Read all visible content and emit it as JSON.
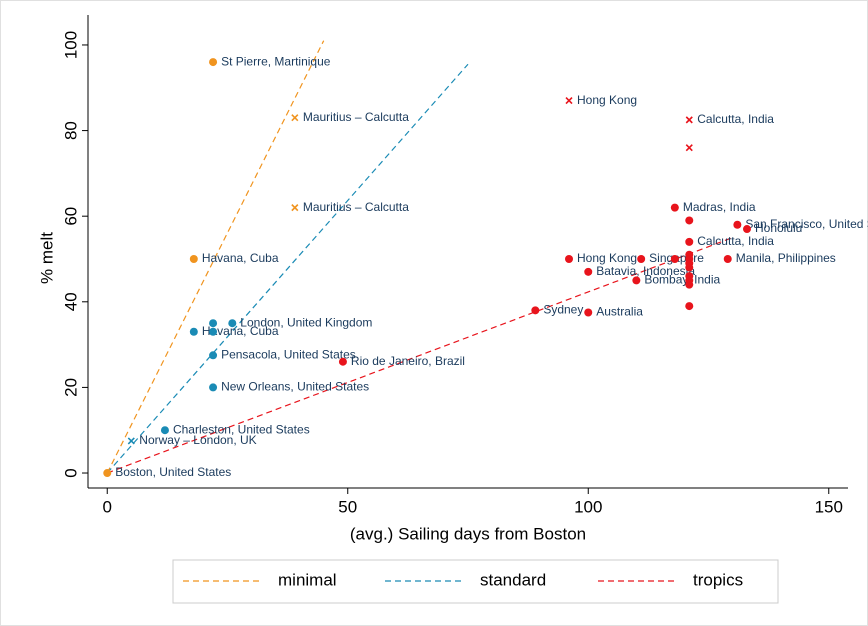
{
  "chart_data": {
    "type": "scatter",
    "x_label": "(avg.) Sailing days from Boston",
    "y_label": "% melt",
    "xlim": [
      -4,
      154
    ],
    "ylim": [
      -3.5,
      107
    ],
    "xticks": [
      0,
      50,
      100,
      150
    ],
    "yticks": [
      0,
      20,
      40,
      60,
      80,
      100
    ],
    "lines": [
      {
        "name": "minimal",
        "color": "#f0941f",
        "x": [
          0,
          45
        ],
        "y": [
          0,
          101
        ]
      },
      {
        "name": "standard",
        "color": "#1a8bb5",
        "x": [
          0,
          75
        ],
        "y": [
          0,
          95.5
        ]
      },
      {
        "name": "tropics",
        "color": "#e8141c",
        "x": [
          0,
          130
        ],
        "y": [
          0,
          55
        ]
      }
    ],
    "points": [
      {
        "color": "#f0941f",
        "marker": "circle",
        "x": [
          22,
          18,
          0
        ],
        "y": [
          96,
          50,
          0
        ],
        "labels": [
          "St Pierre, Martinique",
          "Havana, Cuba",
          "Boston, United States"
        ]
      },
      {
        "color": "#f0941f",
        "marker": "x",
        "x": [
          39,
          39
        ],
        "y": [
          83,
          62
        ],
        "labels": [
          "Mauritius – Calcutta",
          "Mauritius – Calcutta"
        ]
      },
      {
        "color": "#1a8bb5",
        "marker": "circle",
        "x": [
          26,
          18,
          22,
          22,
          22,
          22,
          12
        ],
        "y": [
          35,
          33,
          35,
          33,
          27.5,
          20,
          10
        ],
        "labels": [
          "London, United Kingdom",
          "Havana, Cuba",
          null,
          null,
          "Pensacola, United States",
          "New Orleans, United States",
          "Charleston, United States"
        ]
      },
      {
        "color": "#1a8bb5",
        "marker": "x",
        "x": [
          5
        ],
        "y": [
          7.5
        ],
        "labels": [
          "Norway – London, UK"
        ]
      },
      {
        "color": "#e8141c",
        "marker": "circle",
        "x": [
          49,
          89,
          100,
          96,
          111,
          100,
          110,
          118,
          121,
          131,
          133,
          129,
          121,
          121,
          121,
          121,
          121,
          121,
          121,
          121,
          121,
          118
        ],
        "y": [
          26,
          38,
          37.5,
          50,
          50,
          47,
          45,
          62,
          54,
          58,
          57,
          50,
          59,
          51,
          50,
          49,
          48,
          46,
          45,
          44,
          39,
          50
        ],
        "labels": [
          "Rio de Janeiro, Brazil",
          "Sydney",
          "Australia",
          "Hong Kong",
          "Singapore",
          "Batavia, Indonesia",
          "Bombay, India",
          "Madras, India",
          "Calcutta, India",
          "San Francisco, United States",
          "Honolulu",
          "Manila, Philippines",
          null,
          null,
          null,
          null,
          null,
          null,
          null,
          null,
          null,
          null
        ]
      },
      {
        "color": "#e8141c",
        "marker": "x",
        "x": [
          96,
          121,
          121
        ],
        "y": [
          87,
          82.5,
          76
        ],
        "labels": [
          "Hong Kong",
          "Calcutta, India",
          null
        ]
      }
    ]
  }
}
